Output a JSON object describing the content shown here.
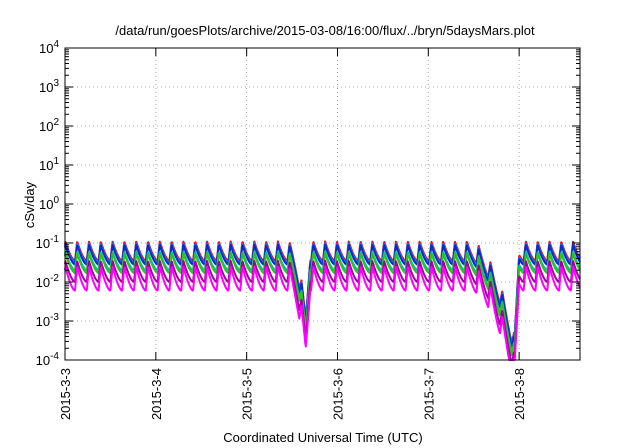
{
  "chart_data": {
    "type": "line",
    "title": "/data/run/goesPlots/archive/2015-03-08/16:00/flux/../bryn/5daysMars.plot",
    "xlabel": "Coordinated Universal Time (UTC)",
    "ylabel": "cSv/day",
    "x_range": [
      "2015-03-03",
      "2015-03-08 16:00"
    ],
    "xlim_days": [
      0,
      5.67
    ],
    "ylim": [
      0.0001,
      10000
    ],
    "y_scale": "log",
    "grid": true,
    "x_ticks": [
      {
        "label": "2015-3-3",
        "day": 0
      },
      {
        "label": "2015-3-4",
        "day": 1
      },
      {
        "label": "2015-3-5",
        "day": 2
      },
      {
        "label": "2015-3-6",
        "day": 3
      },
      {
        "label": "2015-3-7",
        "day": 4
      },
      {
        "label": "2015-3-8",
        "day": 5
      }
    ],
    "y_ticks": [
      {
        "mant": "10",
        "exp": "4",
        "value": 10000
      },
      {
        "mant": "10",
        "exp": "3",
        "value": 1000
      },
      {
        "mant": "10",
        "exp": "2",
        "value": 100
      },
      {
        "mant": "10",
        "exp": "1",
        "value": 10
      },
      {
        "mant": "10",
        "exp": "0",
        "value": 1
      },
      {
        "mant": "10",
        "exp": "-1",
        "value": 0.1
      },
      {
        "mant": "10",
        "exp": "-2",
        "value": 0.01
      },
      {
        "mant": "10",
        "exp": "-3",
        "value": 0.001
      },
      {
        "mant": "10",
        "exp": "-4",
        "value": 0.0001
      }
    ],
    "orbit_period_days": 0.13,
    "series": [
      {
        "color": "#ff0000",
        "peak": 0.11,
        "trough": 0.035
      },
      {
        "color": "#3060ff",
        "peak": 0.1,
        "trough": 0.032
      },
      {
        "color": "#0030c0",
        "peak": 0.09,
        "trough": 0.028
      },
      {
        "color": "#00c0a0",
        "peak": 0.06,
        "trough": 0.02
      },
      {
        "color": "#30c020",
        "peak": 0.055,
        "trough": 0.017
      },
      {
        "color": "#a000a0",
        "peak": 0.035,
        "trough": 0.01
      },
      {
        "color": "#ff00ff",
        "peak": 0.025,
        "trough": 0.006
      }
    ],
    "dips": [
      {
        "start": 2.45,
        "min_day": 2.65,
        "end": 2.7,
        "depth": 0.02
      },
      {
        "start": 4.45,
        "min_day": 4.95,
        "end": 5.0,
        "depth": 0.004
      }
    ]
  }
}
